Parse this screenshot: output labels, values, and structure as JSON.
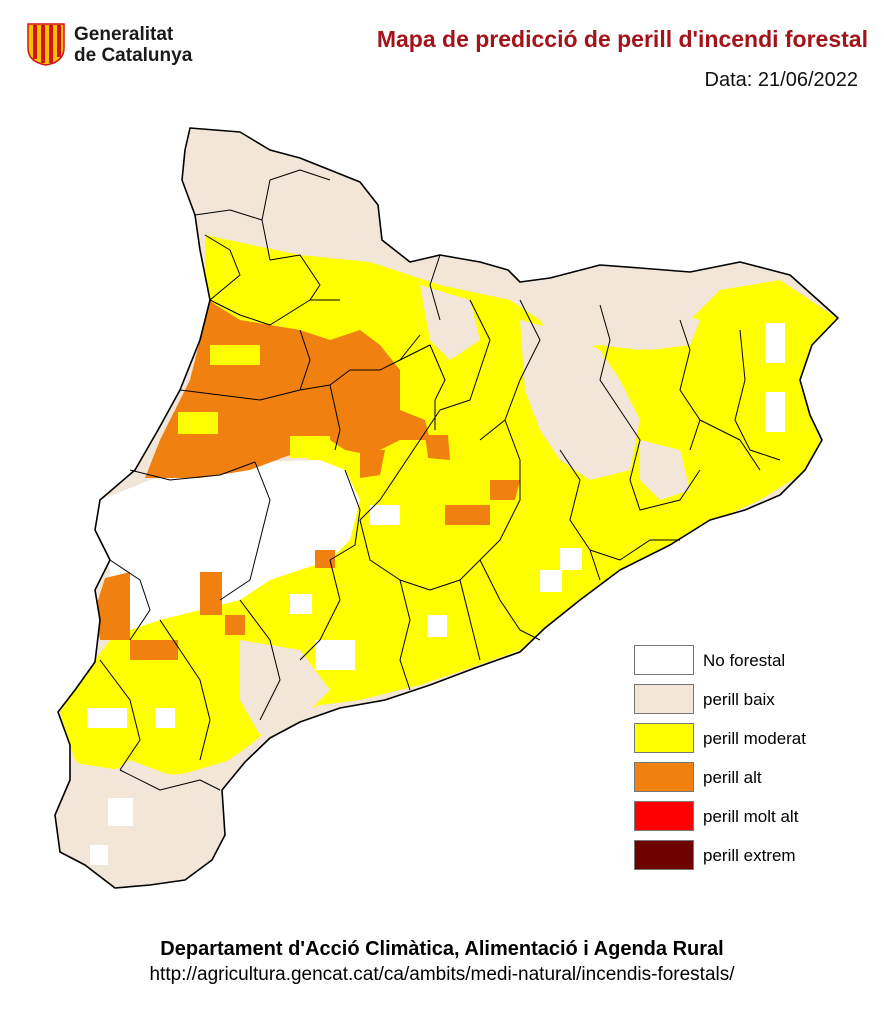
{
  "header": {
    "logo_line1": "Generalitat",
    "logo_line2": "de Catalunya",
    "title": "Mapa de predicció de perill d'incendi forestal",
    "date": "Data: 21/06/2022"
  },
  "legend": [
    {
      "label": "No forestal",
      "color": "#ffffff"
    },
    {
      "label": "perill baix",
      "color": "#f1e6d8"
    },
    {
      "label": "perill moderat",
      "color": "#ffff00"
    },
    {
      "label": "perill alt",
      "color": "#f08010"
    },
    {
      "label": "perill molt alt",
      "color": "#ff0000"
    },
    {
      "label": "perill extrem",
      "color": "#6e0000"
    }
  ],
  "colors": {
    "title": "#a3141a",
    "border": "#000000",
    "logo_red": "#d5121b",
    "logo_gold": "#f5c400"
  },
  "icons": {
    "logo": "generalitat-senyera-icon"
  },
  "footer": {
    "department": "Departament d'Acció Climàtica, Alimentació i Agenda Rural",
    "url": "http://agricultura.gencat.cat/ca/ambits/medi-natural/incendis-forestals/"
  }
}
